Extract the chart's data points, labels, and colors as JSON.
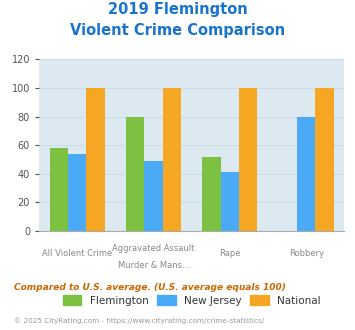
{
  "title_line1": "2019 Flemington",
  "title_line2": "Violent Crime Comparison",
  "title_color": "#1874cd",
  "cat_labels_top": [
    "",
    "Aggravated Assault",
    "",
    ""
  ],
  "cat_labels_bot": [
    "All Violent Crime",
    "Murder & Mans...",
    "Rape",
    "Robbery"
  ],
  "flemington": [
    58,
    80,
    52,
    0
  ],
  "new_jersey": [
    54,
    49,
    41,
    80
  ],
  "national": [
    100,
    100,
    100,
    100
  ],
  "flemington_color": "#7dc142",
  "new_jersey_color": "#4baaf5",
  "national_color": "#f5a623",
  "ylim": [
    0,
    120
  ],
  "yticks": [
    0,
    20,
    40,
    60,
    80,
    100,
    120
  ],
  "grid_color": "#c8dde8",
  "plot_bg": "#dce9f0",
  "legend_labels": [
    "Flemington",
    "New Jersey",
    "National"
  ],
  "footnote1": "Compared to U.S. average. (U.S. average equals 100)",
  "footnote1_color": "#cc6600",
  "footnote2": "© 2025 CityRating.com - https://www.cityrating.com/crime-statistics/",
  "footnote2_color": "#999999",
  "bar_width": 0.24
}
